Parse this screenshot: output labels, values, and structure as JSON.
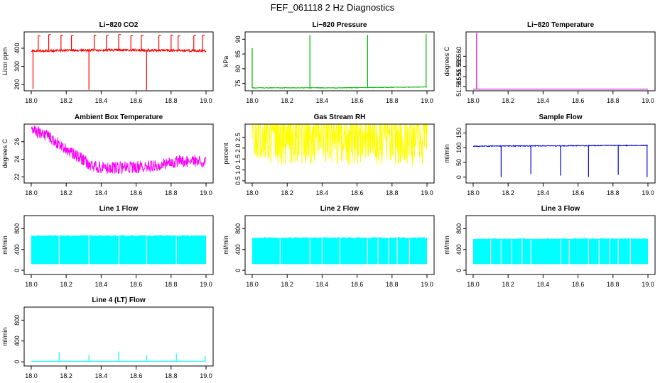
{
  "figure_title": "FEF_061118  2 Hz Diagnostics",
  "x_tick_labels": [
    "18.0",
    "18.2",
    "18.4",
    "18.6",
    "18.8",
    "19.0"
  ],
  "chart_data": [
    {
      "type": "line",
      "title": "Li−820 CO2",
      "ylabel": "Licor ppm",
      "color": "#ff0000",
      "xlim": [
        18.0,
        19.0
      ],
      "ylim": [
        165,
        490
      ],
      "yticks": [
        200,
        300,
        400
      ],
      "baseline": {
        "x": [
          18.0,
          18.25,
          18.5,
          18.75,
          19.0
        ],
        "y": [
          385,
          388,
          390,
          388,
          387
        ]
      },
      "noise": 10,
      "spikes": [
        {
          "x": 18.01,
          "y": 175
        },
        {
          "x": 18.04,
          "y": 468
        },
        {
          "x": 18.1,
          "y": 475
        },
        {
          "x": 18.17,
          "y": 472
        },
        {
          "x": 18.23,
          "y": 470
        },
        {
          "x": 18.33,
          "y": 170
        },
        {
          "x": 18.36,
          "y": 472
        },
        {
          "x": 18.43,
          "y": 470
        },
        {
          "x": 18.5,
          "y": 475
        },
        {
          "x": 18.57,
          "y": 470
        },
        {
          "x": 18.63,
          "y": 472
        },
        {
          "x": 18.66,
          "y": 168
        },
        {
          "x": 18.73,
          "y": 470
        },
        {
          "x": 18.8,
          "y": 472
        },
        {
          "x": 18.84,
          "y": 468
        },
        {
          "x": 18.93,
          "y": 470
        },
        {
          "x": 18.98,
          "y": 472
        }
      ]
    },
    {
      "type": "line",
      "title": "Li−820 Pressure",
      "ylabel": "kPa",
      "color": "#00b400",
      "xlim": [
        18.0,
        19.0
      ],
      "ylim": [
        72.5,
        92.5
      ],
      "yticks": [
        75,
        80,
        85,
        90
      ],
      "baseline": {
        "x": [
          18.0,
          18.5,
          19.0
        ],
        "y": [
          73.5,
          73.5,
          73.8
        ]
      },
      "noise": 0.15,
      "spikes": [
        {
          "x": 18.0,
          "y": 87
        },
        {
          "x": 18.33,
          "y": 91.5
        },
        {
          "x": 18.66,
          "y": 91.5
        },
        {
          "x": 18.995,
          "y": 91.8
        }
      ]
    },
    {
      "type": "line",
      "title": "Li−820 Temperature",
      "ylabel": "degrees C",
      "color": "#cc00cc",
      "xlim": [
        18.0,
        19.0
      ],
      "ylim": [
        51.543,
        51.572
      ],
      "yticks": [
        51.545,
        51.55,
        51.555,
        51.56
      ],
      "ytick_labels": [
        "51.545",
        "51.55",
        "51.555",
        "51.560"
      ],
      "baseline": {
        "x": [
          18.0,
          19.0
        ],
        "y": [
          51.5438,
          51.5438
        ]
      },
      "noise": 0,
      "spikes": [
        {
          "x": 18.02,
          "y": 51.5715
        }
      ]
    },
    {
      "type": "line",
      "title": "Ambient Box Temperature",
      "ylabel": "degrees C",
      "color": "#ff00ff",
      "xlim": [
        18.0,
        19.0
      ],
      "ylim": [
        21.3,
        28.0
      ],
      "yticks": [
        22,
        24,
        26
      ],
      "baseline": {
        "x": [
          18.0,
          18.1,
          18.2,
          18.3,
          18.35,
          18.45,
          18.55,
          18.65,
          18.75,
          18.85,
          19.0
        ],
        "y": [
          27.5,
          26.5,
          25.2,
          23.9,
          23.2,
          23.0,
          23.1,
          23.1,
          23.5,
          23.8,
          23.8
        ]
      },
      "noise": 1.0,
      "spikes": []
    },
    {
      "type": "line",
      "title": "Gas Stream RH",
      "ylabel": "percent",
      "color": "#ffff00",
      "xlim": [
        18.0,
        19.0
      ],
      "ylim": [
        0.4,
        3.1
      ],
      "yticks": [
        0.5,
        1.0,
        1.5,
        2.0,
        2.5
      ],
      "ytick_labels": [
        "0.5",
        "1.0",
        "1.5",
        "2.0",
        "2.5"
      ],
      "baseline": {
        "x": [
          18.0,
          19.0
        ],
        "y": [
          2.6,
          2.6
        ]
      },
      "noise": 2.0,
      "spikes": []
    },
    {
      "type": "line",
      "title": "Sample Flow",
      "ylabel": "ml/min",
      "color": "#0000dd",
      "xlim": [
        18.0,
        19.0
      ],
      "ylim": [
        -20,
        180
      ],
      "yticks": [
        0,
        50,
        100,
        150
      ],
      "baseline": {
        "x": [
          18.0,
          19.0
        ],
        "y": [
          105,
          108
        ]
      },
      "noise": 2,
      "spikes": [
        {
          "x": 18.16,
          "y": 0
        },
        {
          "x": 18.33,
          "y": 10
        },
        {
          "x": 18.5,
          "y": 5
        },
        {
          "x": 18.66,
          "y": 0
        },
        {
          "x": 18.83,
          "y": 8
        },
        {
          "x": 18.995,
          "y": 0
        }
      ]
    },
    {
      "type": "area",
      "title": "Line 1 Flow",
      "ylabel": "ml/min",
      "color": "#00ffff",
      "xlim": [
        18.0,
        19.0
      ],
      "ylim": [
        -80,
        1050
      ],
      "yticks": [
        0,
        400,
        800
      ],
      "band": {
        "low": 120,
        "high": 660
      },
      "gaps": [
        18.16,
        18.33,
        18.5,
        18.66,
        18.83
      ]
    },
    {
      "type": "area",
      "title": "Line 2 Flow",
      "ylabel": "ml/min",
      "color": "#00ffff",
      "xlim": [
        18.0,
        19.0
      ],
      "ylim": [
        -80,
        1050
      ],
      "yticks": [
        0,
        400,
        800
      ],
      "band": {
        "low": 120,
        "high": 620
      },
      "gaps": [
        18.16,
        18.33,
        18.4,
        18.5,
        18.66,
        18.72,
        18.78,
        18.83,
        18.9
      ]
    },
    {
      "type": "area",
      "title": "Line 3 Flow",
      "ylabel": "ml/min",
      "color": "#00ffff",
      "xlim": [
        18.0,
        19.0
      ],
      "ylim": [
        -80,
        1050
      ],
      "yticks": [
        0,
        400,
        800
      ],
      "band": {
        "low": 120,
        "high": 600
      },
      "gaps": [
        18.1,
        18.16,
        18.22,
        18.28,
        18.33,
        18.5,
        18.55,
        18.66,
        18.72,
        18.78,
        18.83,
        18.9
      ]
    },
    {
      "type": "line",
      "title": "Line 4 (LT) Flow",
      "ylabel": "ml/min",
      "color": "#00ffff",
      "xlim": [
        18.0,
        19.0
      ],
      "ylim": [
        -80,
        1050
      ],
      "yticks": [
        0,
        400,
        800
      ],
      "baseline": {
        "x": [
          18.0,
          19.0
        ],
        "y": [
          10,
          10
        ]
      },
      "noise": 3,
      "spikes": [
        {
          "x": 18.16,
          "y": 180
        },
        {
          "x": 18.33,
          "y": 130
        },
        {
          "x": 18.5,
          "y": 200
        },
        {
          "x": 18.66,
          "y": 120
        },
        {
          "x": 18.83,
          "y": 160
        },
        {
          "x": 18.995,
          "y": 110
        }
      ]
    }
  ]
}
